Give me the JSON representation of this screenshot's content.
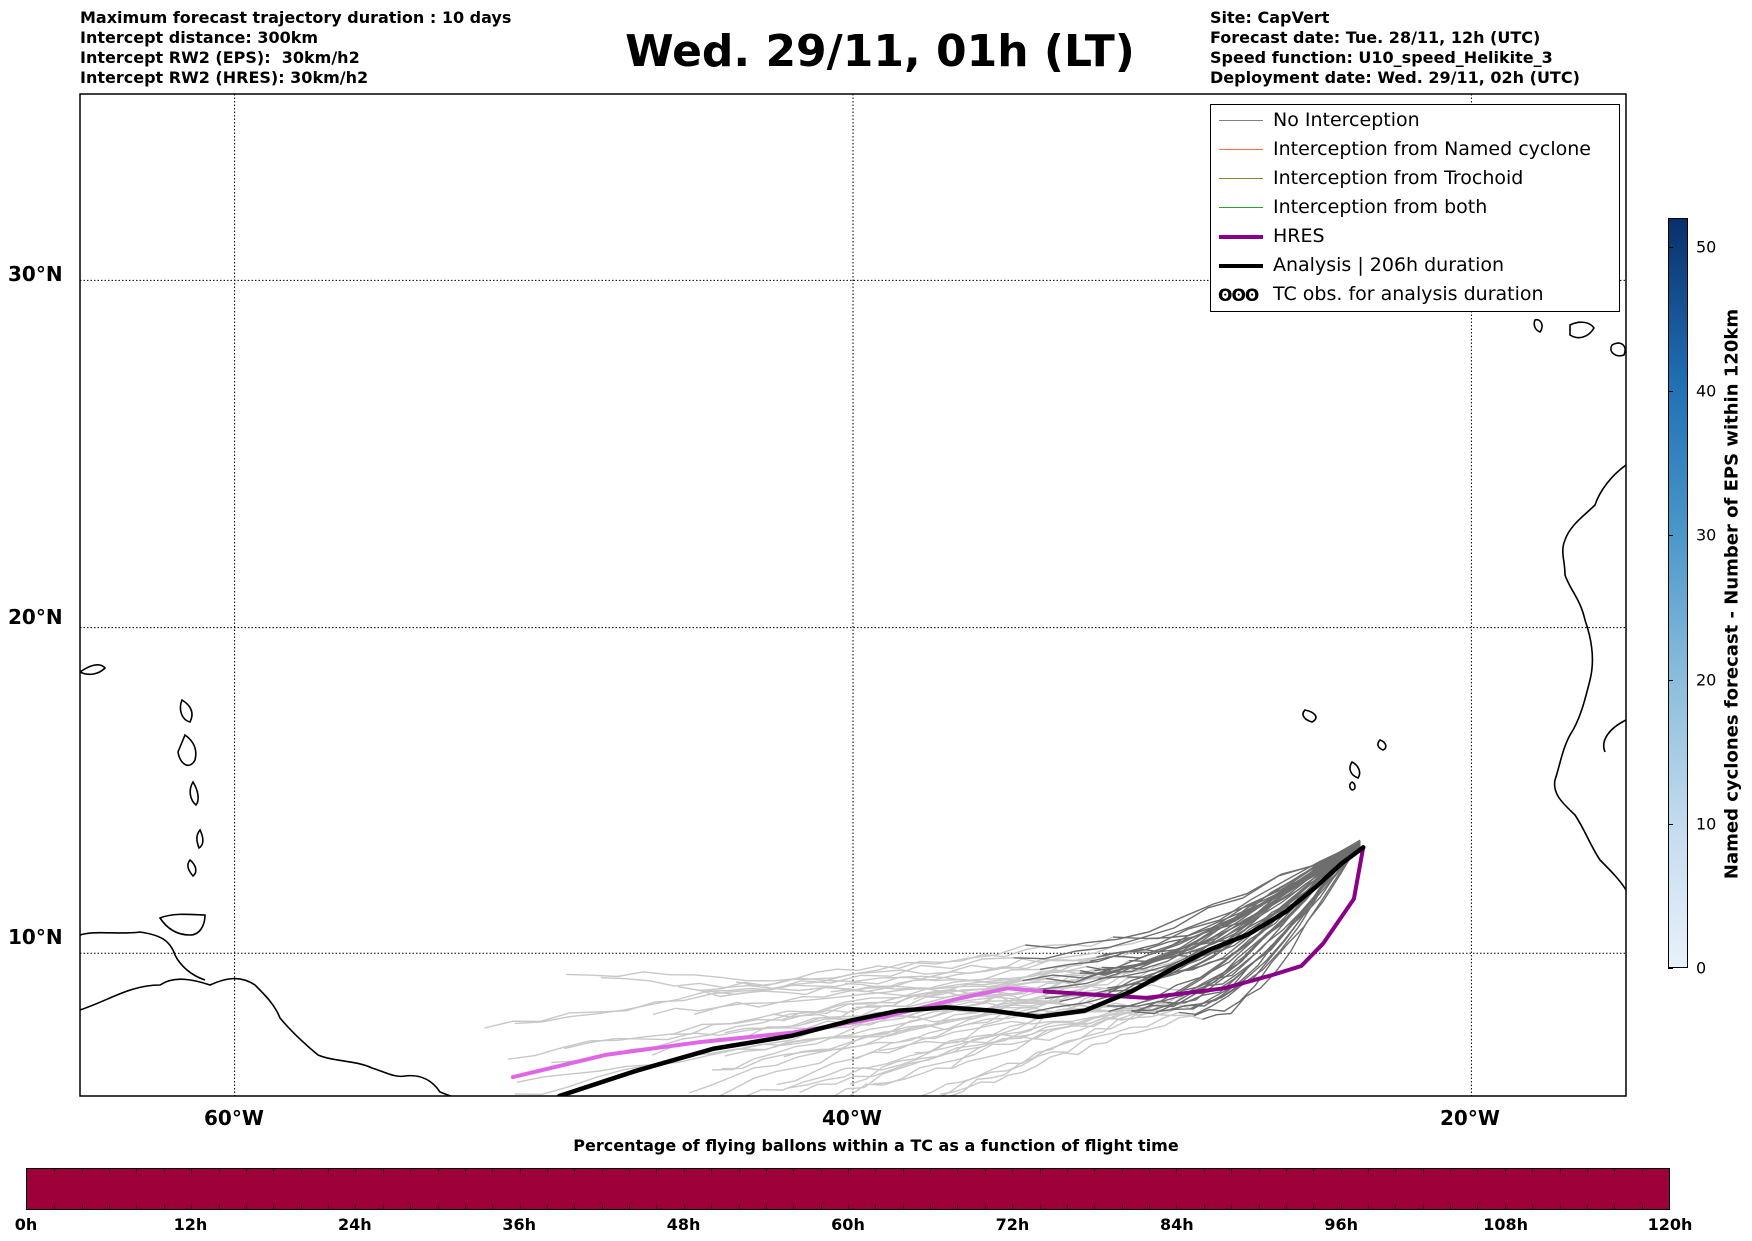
{
  "header_left": [
    "Maximum forecast trajectory duration : 10 days",
    "Intercept distance: 300km",
    "Intercept RW2 (EPS):  30km/h2",
    "Intercept RW2 (HRES): 30km/h2"
  ],
  "header_right": [
    "Site: CapVert",
    "Forecast date: Tue. 28/11, 12h (UTC)",
    "Speed function: U10_speed_Helikite_3",
    "Deployment date: Wed. 29/11, 02h (UTC)"
  ],
  "title": "Wed. 29/11, 01h (LT)",
  "map": {
    "lon_labels": [
      "60°W",
      "40°W",
      "20°W"
    ],
    "lat_labels": [
      "30°N",
      "20°N",
      "10°N"
    ],
    "lon_values": [
      -60,
      -40,
      -20
    ],
    "lat_values": [
      30,
      20,
      10
    ]
  },
  "legend": {
    "items": [
      {
        "label": "No Interception",
        "color": "#808080"
      },
      {
        "label": "Interception from Named cyclone",
        "color": "#ff6f3c"
      },
      {
        "label": "Interception from Trochoid",
        "color": "#8b8b2e"
      },
      {
        "label": "Interception from both",
        "color": "#2ca02c"
      },
      {
        "label": "HRES",
        "color": "#8b008b"
      },
      {
        "label": "Analysis | 206h duration",
        "color": "#000000"
      },
      {
        "label": "TC obs. for analysis duration",
        "symbol": "ʘʘʘ"
      }
    ]
  },
  "bottom_colorbar": {
    "title": "Percentage of flying ballons within a TC as a function of flight time",
    "color": "#9e003a",
    "tick_labels": [
      "0h",
      "12h",
      "24h",
      "36h",
      "48h",
      "60h",
      "72h",
      "84h",
      "96h",
      "108h",
      "120h"
    ]
  },
  "right_colorbar": {
    "title": "Named cyclones forecast - Number of EPS within 120km",
    "tick_labels": [
      "0",
      "10",
      "20",
      "30",
      "40",
      "50"
    ],
    "tick_values": [
      0,
      10,
      20,
      30,
      40,
      50
    ],
    "max": 52
  },
  "chart_data": {
    "type": "line",
    "x_axis": "longitude",
    "y_axis": "latitude",
    "xlim": [
      -65,
      -15
    ],
    "ylim": [
      5.5,
      35
    ],
    "grid": true,
    "legend_placement": "top-right",
    "series": [
      {
        "name": "HRES",
        "color_light": "#e066e8",
        "color": "#8b008b",
        "x": [
          -51,
          -48,
          -45,
          -42,
          -39,
          -36.5,
          -35,
          -33.8,
          -30.5,
          -28,
          -26.5,
          -25.5,
          -24.8,
          -23.8,
          -23.5
        ],
        "y": [
          6.1,
          6.8,
          7.2,
          7.5,
          8.0,
          8.6,
          8.9,
          8.8,
          8.6,
          8.9,
          9.3,
          9.6,
          10.3,
          11.7,
          13.3
        ]
      },
      {
        "name": "Analysis | 206h duration",
        "color": "#000000",
        "x": [
          -49.5,
          -47,
          -44.5,
          -42,
          -40,
          -38.5,
          -37,
          -35.5,
          -34,
          -32.5,
          -31,
          -29.5,
          -28.5,
          -27.2,
          -26,
          -25,
          -24.2,
          -23.5
        ],
        "y": [
          5.5,
          6.3,
          7.0,
          7.4,
          7.9,
          8.2,
          8.3,
          8.2,
          8.0,
          8.2,
          8.8,
          9.6,
          10.1,
          10.6,
          11.3,
          12.1,
          12.8,
          13.3
        ]
      }
    ]
  }
}
